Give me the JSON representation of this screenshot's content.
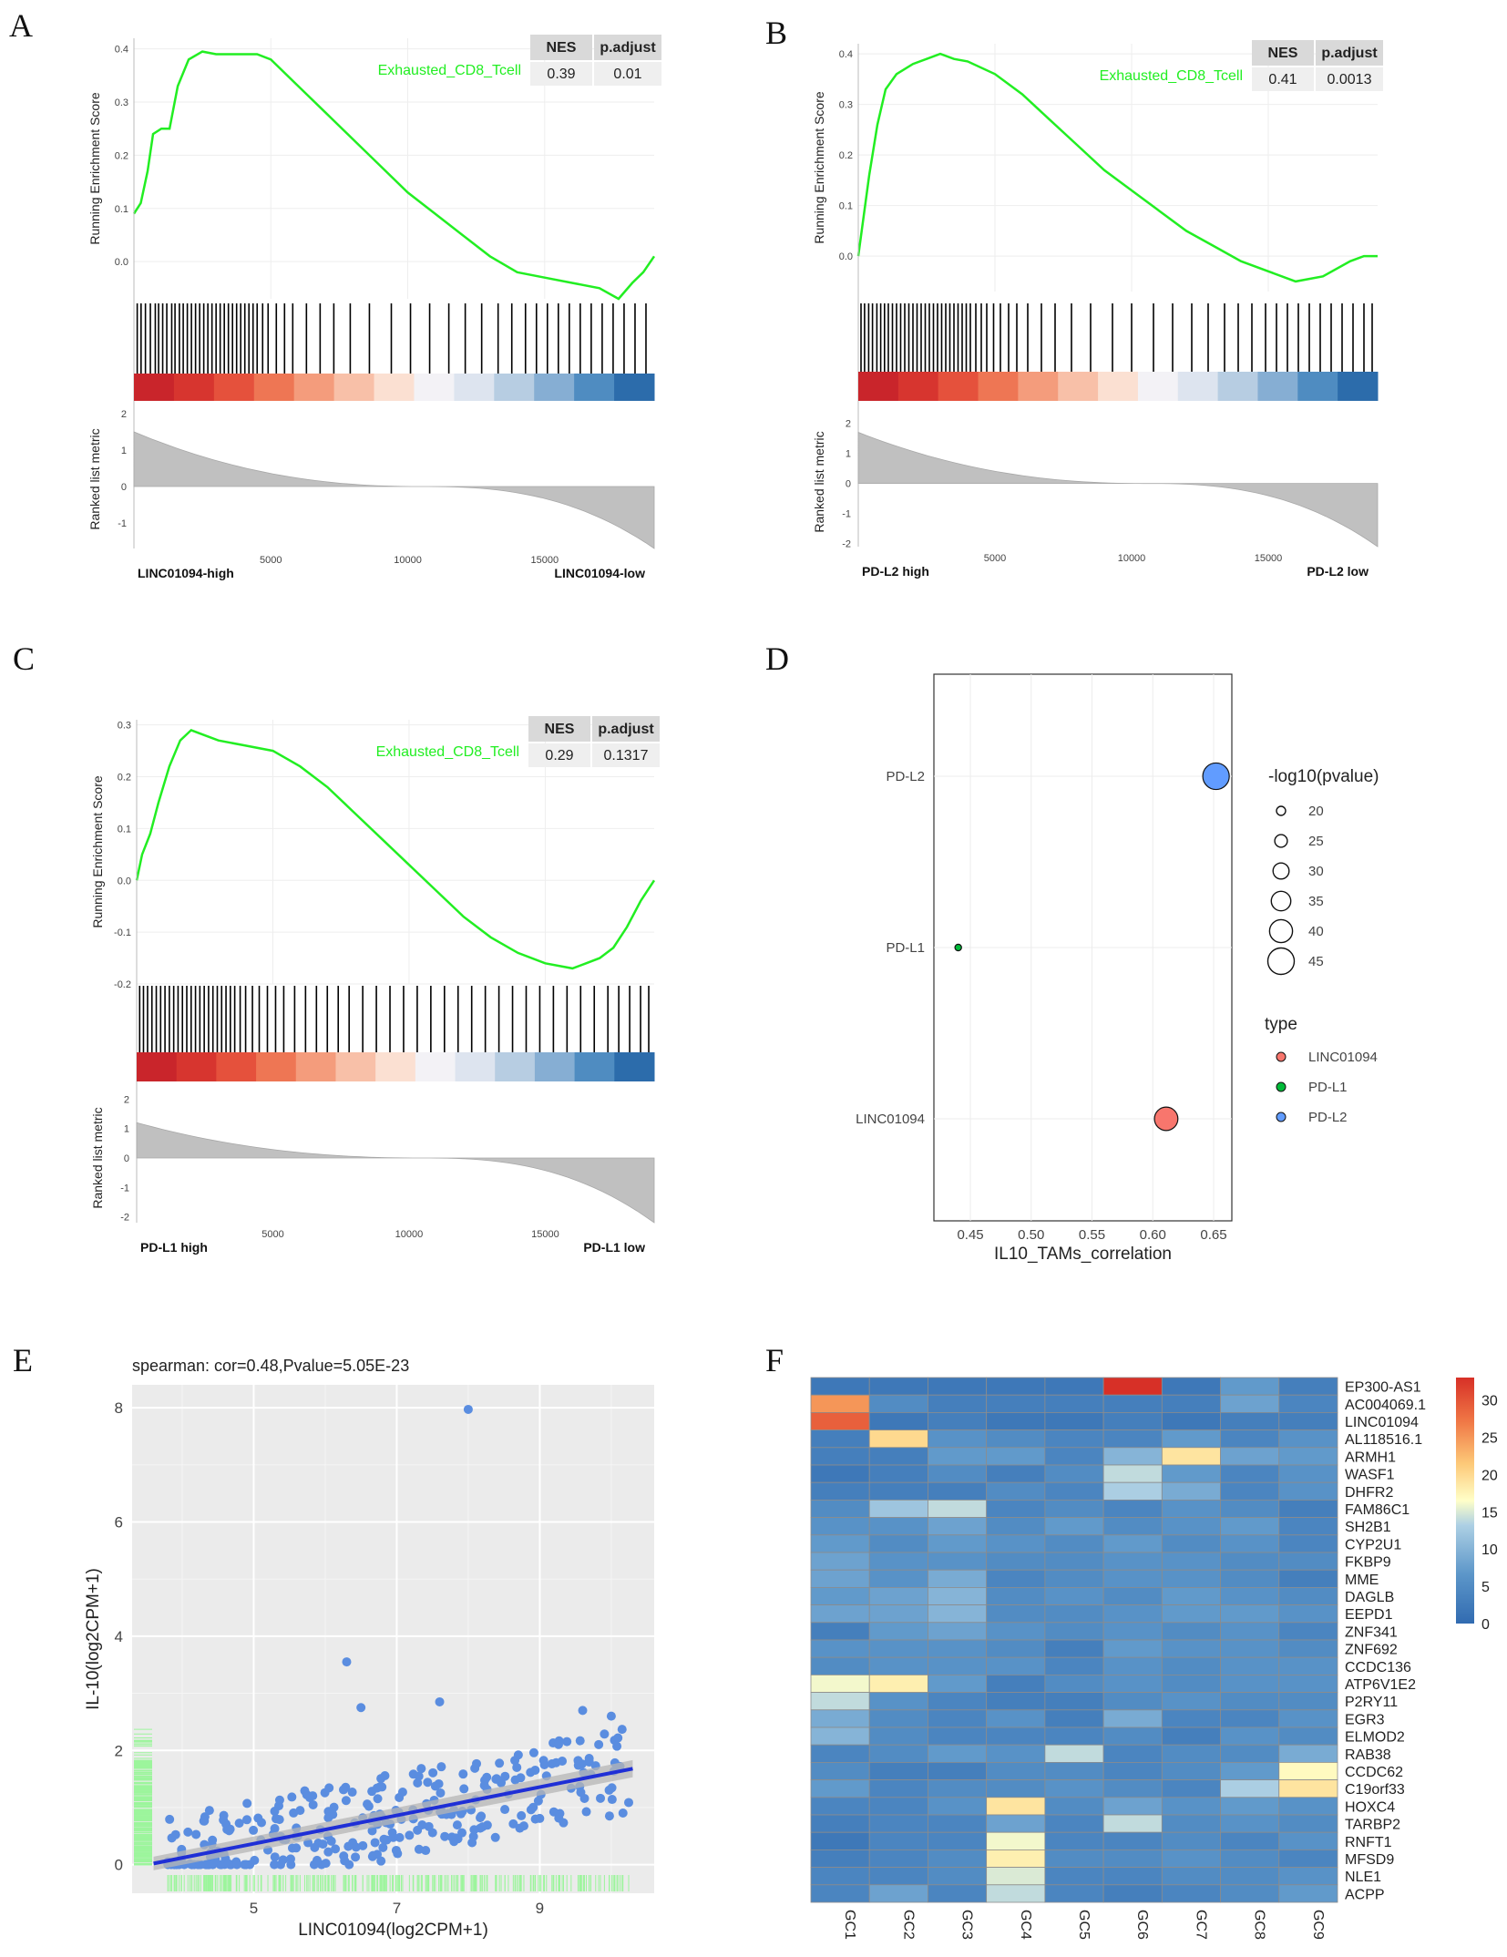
{
  "chart_data": [
    {
      "panel": "A",
      "type": "line",
      "title": "",
      "ylabel": "Running Enrichment Score",
      "ylabel2": "Ranked list metric",
      "gene_set": "Exhausted_CD8_Tcell",
      "table": {
        "headers": [
          "NES",
          "p.adjust"
        ],
        "values": [
          "0.39",
          "0.01"
        ]
      },
      "ylim": [
        -0.07,
        0.42
      ],
      "yticks": [
        "0.4",
        "0.3",
        "0.2",
        "0.1",
        "0.0"
      ],
      "x_max": 19000,
      "xticks": [
        "5000",
        "10000",
        "15000"
      ],
      "rank_ylim": [
        -1.7,
        2.1
      ],
      "rank_yticks": [
        "2",
        "1",
        "0",
        "-1"
      ],
      "rank_start": 1.5,
      "rank_end": -1.7,
      "xlabel_left": "LINC01094-high",
      "xlabel_right": "LINC01094-low",
      "curve": [
        [
          0,
          0.09
        ],
        [
          250,
          0.11
        ],
        [
          500,
          0.17
        ],
        [
          700,
          0.24
        ],
        [
          1000,
          0.25
        ],
        [
          1300,
          0.25
        ],
        [
          1600,
          0.33
        ],
        [
          2000,
          0.38
        ],
        [
          2500,
          0.395
        ],
        [
          3000,
          0.39
        ],
        [
          3800,
          0.39
        ],
        [
          4500,
          0.39
        ],
        [
          5000,
          0.38
        ],
        [
          6000,
          0.33
        ],
        [
          7000,
          0.28
        ],
        [
          8000,
          0.23
        ],
        [
          9000,
          0.18
        ],
        [
          10000,
          0.13
        ],
        [
          11000,
          0.09
        ],
        [
          12000,
          0.05
        ],
        [
          13000,
          0.01
        ],
        [
          14000,
          -0.02
        ],
        [
          15000,
          -0.03
        ],
        [
          16000,
          -0.04
        ],
        [
          17000,
          -0.05
        ],
        [
          17700,
          -0.07
        ],
        [
          18200,
          -0.04
        ],
        [
          18600,
          -0.02
        ],
        [
          19000,
          0.01
        ]
      ],
      "hits": [
        120,
        260,
        420,
        600,
        780,
        900,
        1050,
        1200,
        1380,
        1500,
        1660,
        1800,
        1950,
        2100,
        2250,
        2400,
        2550,
        2700,
        2850,
        3000,
        3150,
        3300,
        3450,
        3600,
        3750,
        3900,
        4050,
        4200,
        4350,
        4500,
        4700,
        4900,
        5200,
        5500,
        5800,
        6300,
        6800,
        7300,
        7900,
        8600,
        9400,
        10100,
        10800,
        11500,
        12100,
        12700,
        13300,
        13800,
        14300,
        14700,
        15100,
        15500,
        15900,
        16300,
        16700,
        17100,
        17500,
        17900,
        18300,
        18700
      ],
      "heat_colors": [
        "#c9252b",
        "#d7352f",
        "#e5513c",
        "#ee7654",
        "#f49c7c",
        "#f8c0a8",
        "#fbe0d2",
        "#f3f2f6",
        "#dde4ef",
        "#b7cde2",
        "#86aed3",
        "#4f8cc1",
        "#2c6cab"
      ]
    },
    {
      "panel": "B",
      "type": "line",
      "title": "",
      "ylabel": "Running Enrichment Score",
      "ylabel2": "Ranked list metric",
      "gene_set": "Exhausted_CD8_Tcell",
      "table": {
        "headers": [
          "NES",
          "p.adjust"
        ],
        "values": [
          "0.41",
          "0.0013"
        ]
      },
      "ylim": [
        -0.07,
        0.42
      ],
      "yticks": [
        "0.4",
        "0.3",
        "0.2",
        "0.1",
        "0.0"
      ],
      "x_max": 19000,
      "xticks": [
        "5000",
        "10000",
        "15000"
      ],
      "rank_ylim": [
        -2.1,
        2.2
      ],
      "rank_yticks": [
        "2",
        "1",
        "0",
        "-1",
        "-2"
      ],
      "rank_start": 1.7,
      "rank_end": -2.1,
      "xlabel_left": "PD-L2 high",
      "xlabel_right": "PD-L2 low",
      "curve": [
        [
          0,
          0.0
        ],
        [
          150,
          0.06
        ],
        [
          400,
          0.16
        ],
        [
          700,
          0.26
        ],
        [
          1000,
          0.33
        ],
        [
          1400,
          0.36
        ],
        [
          2000,
          0.38
        ],
        [
          2500,
          0.39
        ],
        [
          3000,
          0.4
        ],
        [
          3500,
          0.39
        ],
        [
          4000,
          0.385
        ],
        [
          5000,
          0.36
        ],
        [
          6000,
          0.32
        ],
        [
          7000,
          0.27
        ],
        [
          8000,
          0.22
        ],
        [
          9000,
          0.17
        ],
        [
          10000,
          0.13
        ],
        [
          11000,
          0.09
        ],
        [
          12000,
          0.05
        ],
        [
          13000,
          0.02
        ],
        [
          14000,
          -0.01
        ],
        [
          15000,
          -0.03
        ],
        [
          16000,
          -0.05
        ],
        [
          17000,
          -0.04
        ],
        [
          18000,
          -0.01
        ],
        [
          18500,
          0.0
        ],
        [
          19000,
          0.0
        ]
      ],
      "hits": [
        100,
        230,
        380,
        520,
        680,
        820,
        960,
        1100,
        1250,
        1400,
        1550,
        1700,
        1850,
        2000,
        2150,
        2300,
        2450,
        2600,
        2750,
        2900,
        3050,
        3200,
        3350,
        3500,
        3650,
        3800,
        3950,
        4100,
        4300,
        4500,
        4700,
        4950,
        5200,
        5500,
        5800,
        6200,
        6700,
        7200,
        7800,
        8500,
        9300,
        10000,
        10800,
        11500,
        12200,
        12800,
        13400,
        13900,
        14400,
        14900,
        15300,
        15700,
        16100,
        16500,
        16900,
        17300,
        17700,
        18100,
        18500,
        18800
      ],
      "heat_colors": [
        "#c9252b",
        "#d7352f",
        "#e5513c",
        "#ee7654",
        "#f49c7c",
        "#f8c0a8",
        "#fbe0d2",
        "#f3f2f6",
        "#dde4ef",
        "#b7cde2",
        "#86aed3",
        "#4f8cc1",
        "#2c6cab"
      ]
    },
    {
      "panel": "C",
      "type": "line",
      "title": "",
      "ylabel": "Running Enrichment Score",
      "ylabel2": "Ranked list metric",
      "gene_set": "Exhausted_CD8_Tcell",
      "table": {
        "headers": [
          "NES",
          "p.adjust"
        ],
        "values": [
          "0.29",
          "0.1317"
        ]
      },
      "ylim": [
        -0.2,
        0.31
      ],
      "yticks": [
        "0.3",
        "0.2",
        "0.1",
        "0.0",
        "-0.1",
        "-0.2"
      ],
      "x_max": 19000,
      "xticks": [
        "5000",
        "10000",
        "15000"
      ],
      "rank_ylim": [
        -2.2,
        2.2
      ],
      "rank_yticks": [
        "2",
        "1",
        "0",
        "-1",
        "-2"
      ],
      "rank_start": 1.2,
      "rank_end": -2.2,
      "xlabel_left": "PD-L1 high",
      "xlabel_right": "PD-L1 low",
      "curve": [
        [
          0,
          0.0
        ],
        [
          200,
          0.05
        ],
        [
          500,
          0.09
        ],
        [
          800,
          0.15
        ],
        [
          1200,
          0.22
        ],
        [
          1600,
          0.27
        ],
        [
          2000,
          0.29
        ],
        [
          2500,
          0.28
        ],
        [
          3000,
          0.27
        ],
        [
          4000,
          0.26
        ],
        [
          5000,
          0.25
        ],
        [
          6000,
          0.22
        ],
        [
          7000,
          0.18
        ],
        [
          8000,
          0.13
        ],
        [
          9000,
          0.08
        ],
        [
          10000,
          0.03
        ],
        [
          11000,
          -0.02
        ],
        [
          12000,
          -0.07
        ],
        [
          13000,
          -0.11
        ],
        [
          14000,
          -0.14
        ],
        [
          15000,
          -0.16
        ],
        [
          16000,
          -0.17
        ],
        [
          16500,
          -0.16
        ],
        [
          17000,
          -0.15
        ],
        [
          17500,
          -0.13
        ],
        [
          18000,
          -0.09
        ],
        [
          18500,
          -0.04
        ],
        [
          19000,
          0.0
        ]
      ],
      "hits": [
        110,
        250,
        400,
        560,
        720,
        880,
        1040,
        1200,
        1360,
        1520,
        1680,
        1840,
        2000,
        2160,
        2320,
        2480,
        2640,
        2800,
        2960,
        3120,
        3280,
        3440,
        3600,
        3800,
        4000,
        4250,
        4500,
        4800,
        5100,
        5400,
        5800,
        6200,
        6600,
        7000,
        7400,
        7800,
        8300,
        8800,
        9300,
        9800,
        10300,
        10800,
        11300,
        11800,
        12300,
        12800,
        13300,
        13800,
        14300,
        14800,
        15300,
        15800,
        16300,
        16800,
        17300,
        17700,
        18100,
        18500,
        18800
      ],
      "heat_colors": [
        "#c9252b",
        "#d7352f",
        "#e5513c",
        "#ee7654",
        "#f49c7c",
        "#f8c0a8",
        "#fbe0d2",
        "#f3f2f6",
        "#dde4ef",
        "#b7cde2",
        "#86aed3",
        "#4f8cc1",
        "#2c6cab"
      ]
    },
    {
      "panel": "D",
      "type": "scatter",
      "title": "",
      "xlabel": "IL10_TAMs_correlation",
      "ylabel": "",
      "xlim": [
        0.42,
        0.665
      ],
      "xticks": [
        0.45,
        0.5,
        0.55,
        0.6,
        0.65
      ],
      "xtick_labels": [
        "0.45",
        "0.50",
        "0.55",
        "0.60",
        "0.65"
      ],
      "categories": [
        "PD-L2",
        "PD-L1",
        "LINC01094"
      ],
      "points": [
        {
          "category": "PD-L2",
          "x": 0.652,
          "neglog10p": 48,
          "type": "PD-L2"
        },
        {
          "category": "PD-L1",
          "x": 0.44,
          "neglog10p": 9,
          "type": "PD-L1"
        },
        {
          "category": "LINC01094",
          "x": 0.611,
          "neglog10p": 42,
          "type": "LINC01094"
        }
      ],
      "size_legend_title": "-log10(pvalue)",
      "size_legend": [
        "20",
        "25",
        "30",
        "35",
        "40",
        "45"
      ],
      "type_legend_title": "type",
      "type_legend": [
        {
          "label": "LINC01094",
          "color": "#f8766d"
        },
        {
          "label": "PD-L1",
          "color": "#00ba38"
        },
        {
          "label": "PD-L2",
          "color": "#619cff"
        }
      ]
    },
    {
      "panel": "E",
      "type": "scatter",
      "title": "spearman: cor=0.48,Pvalue=5.05E-23",
      "xlabel": "LINC01094(log2CPM+1)",
      "ylabel": "IL-10(log2CPM+1)",
      "xlim": [
        3.3,
        10.6
      ],
      "ylim": [
        -0.5,
        8.4
      ],
      "xticks": [
        "5",
        "7",
        "9"
      ],
      "yticks": [
        "0",
        "2",
        "4",
        "6",
        "8"
      ],
      "fit": {
        "x0": 3.6,
        "y0": 0.02,
        "x1": 10.3,
        "y1": 1.68
      },
      "outliers": [
        [
          8.0,
          7.97
        ],
        [
          6.3,
          3.55
        ],
        [
          6.5,
          2.75
        ],
        [
          7.6,
          2.85
        ],
        [
          9.6,
          2.7
        ],
        [
          10.0,
          2.6
        ]
      ],
      "n_points": 300,
      "point_color": "#5a8de0",
      "line_color": "#1f2fd6"
    },
    {
      "panel": "F",
      "type": "heatmap",
      "title": "",
      "columns": [
        "GC1",
        "GC2",
        "GC3",
        "GC4",
        "GC5",
        "GC6",
        "GC7",
        "GC8",
        "GC9"
      ],
      "rows": [
        "EP300-AS1",
        "AC004069.1",
        "LINC01094",
        "AL118516.1",
        "ARMH1",
        "WASF1",
        "DHFR2",
        "FAM86C1",
        "SH2B1",
        "CYP2U1",
        "FKBP9",
        "MME",
        "DAGLB",
        "EEPD1",
        "ZNF341",
        "ZNF692",
        "CCDC136",
        "ATP6V1E2",
        "P2RY11",
        "EGR3",
        "ELMOD2",
        "RAB38",
        "CCDC62",
        "C19orf33",
        "HOXC4",
        "TARBP2",
        "RNFT1",
        "MFSD9",
        "NLE1",
        "ACPP"
      ],
      "values": [
        [
          2,
          2,
          2,
          2,
          2,
          33,
          2,
          7,
          3
        ],
        [
          25,
          5,
          3,
          3,
          3,
          3,
          3,
          8,
          4
        ],
        [
          29,
          2,
          3,
          2,
          2,
          3,
          2,
          3,
          3
        ],
        [
          3,
          20,
          6,
          5,
          4,
          4,
          7,
          4,
          6
        ],
        [
          3,
          3,
          7,
          7,
          4,
          10,
          19,
          8,
          7
        ],
        [
          2,
          3,
          5,
          3,
          5,
          14,
          7,
          4,
          6
        ],
        [
          3,
          3,
          3,
          5,
          4,
          13,
          9,
          4,
          6
        ],
        [
          5,
          12,
          14,
          4,
          5,
          4,
          6,
          5,
          3
        ],
        [
          6,
          6,
          8,
          5,
          7,
          5,
          6,
          7,
          4
        ],
        [
          7,
          5,
          7,
          6,
          5,
          7,
          5,
          6,
          4
        ],
        [
          8,
          6,
          6,
          5,
          5,
          6,
          6,
          5,
          5
        ],
        [
          8,
          6,
          9,
          4,
          5,
          6,
          6,
          5,
          3
        ],
        [
          7,
          8,
          10,
          5,
          6,
          5,
          7,
          6,
          5
        ],
        [
          8,
          8,
          10,
          5,
          5,
          6,
          7,
          7,
          6
        ],
        [
          3,
          7,
          8,
          6,
          5,
          6,
          5,
          6,
          4
        ],
        [
          6,
          6,
          6,
          5,
          3,
          7,
          6,
          6,
          5
        ],
        [
          5,
          6,
          6,
          6,
          4,
          6,
          5,
          6,
          6
        ],
        [
          16,
          18,
          7,
          3,
          5,
          6,
          5,
          6,
          6
        ],
        [
          14,
          6,
          4,
          3,
          3,
          5,
          6,
          5,
          5
        ],
        [
          9,
          5,
          4,
          6,
          3,
          9,
          4,
          4,
          6
        ],
        [
          10,
          5,
          4,
          4,
          4,
          5,
          3,
          6,
          5
        ],
        [
          4,
          5,
          7,
          6,
          14,
          4,
          5,
          5,
          9
        ],
        [
          5,
          3,
          3,
          5,
          5,
          4,
          5,
          7,
          17
        ],
        [
          7,
          4,
          5,
          5,
          6,
          5,
          4,
          13,
          19
        ],
        [
          4,
          4,
          6,
          19,
          5,
          8,
          6,
          7,
          6
        ],
        [
          3,
          4,
          4,
          8,
          4,
          14,
          5,
          6,
          5
        ],
        [
          2,
          4,
          4,
          16,
          4,
          4,
          5,
          4,
          6
        ],
        [
          3,
          4,
          5,
          18,
          5,
          5,
          6,
          5,
          4
        ],
        [
          4,
          4,
          5,
          15,
          4,
          4,
          5,
          5,
          6
        ],
        [
          4,
          8,
          4,
          14,
          4,
          3,
          4,
          5,
          7
        ]
      ],
      "legend_ticks": [
        "30",
        "25",
        "20",
        "15",
        "10",
        "5",
        "0"
      ],
      "vmin": 0,
      "vmax": 33
    }
  ],
  "panel_letters": {
    "A": "A",
    "B": "B",
    "C": "C",
    "D": "D",
    "E": "E",
    "F": "F"
  }
}
